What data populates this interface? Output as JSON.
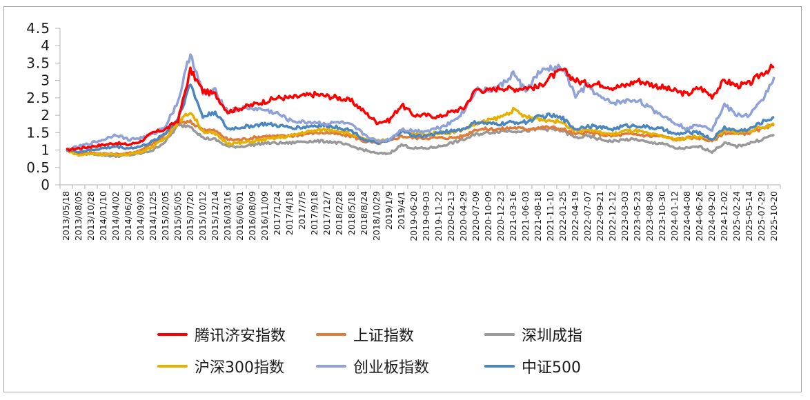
{
  "chart_data": {
    "type": "line",
    "title": "",
    "xlabel": "",
    "ylabel": "",
    "ylim": [
      0,
      4.5
    ],
    "yticks": [
      "0",
      "0.5",
      "1",
      "1.5",
      "2",
      "2.5",
      "3",
      "3.5",
      "4",
      "4.5"
    ],
    "grid": false,
    "legend_position": "bottom",
    "categories": [
      "2013/05/18",
      "2013/08/05",
      "2013/10/28",
      "2014/01/10",
      "2014/04/02",
      "2014/06/20",
      "2014/09/03",
      "2014/11/25",
      "2015/02/05",
      "2015/05/05",
      "2015/07/20",
      "2015/10/12",
      "2015/12/14",
      "2016/03/16",
      "2016/06/01",
      "2016/08/09",
      "2016/11/09",
      "2017/1/24",
      "2017/4/18",
      "2017/7/5",
      "2017/9/18",
      "2017/12/7",
      "2018/2/28",
      "2018/5/18",
      "2018/8/24",
      "2018/10/29",
      "2019/1/9",
      "2019/4/1",
      "2019-06-20",
      "2019-09-03",
      "2019-11-22",
      "2020-02-13",
      "2020-04-29",
      "2020-07-09",
      "2020-10-09",
      "2020-12-23",
      "2021-03-16",
      "2021-06-03",
      "2021-08-18",
      "2021-11-10",
      "2022-01-25",
      "2022-04-19",
      "2022-07-07",
      "2022-09-21",
      "2022-12-12",
      "2023-03-03",
      "2023-05-23",
      "2023-08-08",
      "2023-10-30",
      "2024-01-12",
      "2024-04-08",
      "2024-06-26",
      "2024-09-20",
      "2024-12-02",
      "2025-02-24",
      "2025-05-14",
      "2025-07-29",
      "2025-10-20"
    ],
    "series": [
      {
        "name": "腾讯济安指数",
        "color": "#ff0000",
        "values": [
          1.0,
          1.05,
          1.1,
          1.15,
          1.2,
          1.15,
          1.25,
          1.5,
          1.6,
          1.85,
          3.3,
          2.7,
          2.6,
          2.1,
          2.2,
          2.3,
          2.4,
          2.5,
          2.5,
          2.55,
          2.6,
          2.55,
          2.5,
          2.4,
          2.1,
          1.8,
          1.85,
          2.3,
          2.0,
          2.0,
          1.95,
          2.1,
          2.2,
          2.75,
          2.7,
          2.8,
          2.75,
          2.8,
          2.8,
          3.1,
          3.3,
          3.0,
          2.9,
          2.9,
          2.8,
          2.85,
          3.0,
          2.9,
          2.8,
          2.7,
          2.6,
          2.8,
          2.55,
          3.0,
          2.85,
          2.9,
          3.2,
          3.4
        ]
      },
      {
        "name": "上证指数",
        "color": "#e07b39",
        "values": [
          1.0,
          0.9,
          0.92,
          0.9,
          0.88,
          0.9,
          1.0,
          1.2,
          1.45,
          1.8,
          1.8,
          1.6,
          1.55,
          1.3,
          1.3,
          1.35,
          1.4,
          1.4,
          1.4,
          1.45,
          1.5,
          1.5,
          1.45,
          1.4,
          1.25,
          1.2,
          1.25,
          1.4,
          1.35,
          1.35,
          1.35,
          1.35,
          1.4,
          1.6,
          1.6,
          1.6,
          1.65,
          1.6,
          1.65,
          1.65,
          1.6,
          1.45,
          1.5,
          1.45,
          1.4,
          1.45,
          1.45,
          1.4,
          1.4,
          1.3,
          1.35,
          1.35,
          1.25,
          1.5,
          1.45,
          1.5,
          1.6,
          1.7
        ]
      },
      {
        "name": "深圳成指",
        "color": "#999999",
        "values": [
          1.0,
          0.87,
          0.9,
          0.85,
          0.82,
          0.85,
          0.9,
          1.0,
          1.25,
          1.7,
          1.7,
          1.35,
          1.3,
          1.1,
          1.1,
          1.15,
          1.2,
          1.2,
          1.2,
          1.25,
          1.25,
          1.25,
          1.2,
          1.1,
          1.0,
          0.9,
          0.9,
          1.15,
          1.05,
          1.05,
          1.1,
          1.2,
          1.3,
          1.45,
          1.5,
          1.55,
          1.55,
          1.55,
          1.6,
          1.6,
          1.55,
          1.35,
          1.4,
          1.3,
          1.25,
          1.3,
          1.3,
          1.2,
          1.2,
          1.05,
          1.05,
          1.1,
          0.95,
          1.2,
          1.1,
          1.2,
          1.3,
          1.45
        ]
      },
      {
        "name": "沪深300指数",
        "color": "#e6b000",
        "values": [
          1.0,
          0.85,
          0.9,
          0.88,
          0.86,
          0.88,
          0.95,
          1.1,
          1.35,
          1.8,
          2.1,
          1.55,
          1.45,
          1.2,
          1.2,
          1.25,
          1.3,
          1.35,
          1.4,
          1.5,
          1.55,
          1.6,
          1.55,
          1.45,
          1.3,
          1.25,
          1.3,
          1.55,
          1.45,
          1.45,
          1.5,
          1.5,
          1.6,
          1.75,
          1.85,
          1.95,
          2.15,
          1.95,
          1.9,
          1.85,
          1.8,
          1.55,
          1.6,
          1.5,
          1.45,
          1.55,
          1.55,
          1.45,
          1.4,
          1.3,
          1.35,
          1.4,
          1.3,
          1.55,
          1.5,
          1.55,
          1.65,
          1.75
        ]
      },
      {
        "name": "创业板指数",
        "color": "#8fa2d8",
        "values": [
          1.0,
          1.1,
          1.2,
          1.3,
          1.45,
          1.3,
          1.35,
          1.45,
          1.7,
          2.4,
          3.8,
          2.6,
          2.7,
          2.1,
          2.2,
          2.2,
          2.15,
          2.05,
          1.85,
          1.8,
          1.8,
          1.75,
          1.8,
          1.7,
          1.45,
          1.25,
          1.3,
          1.6,
          1.55,
          1.55,
          1.65,
          1.8,
          2.1,
          2.75,
          2.7,
          2.85,
          3.2,
          2.7,
          3.2,
          3.35,
          3.35,
          2.55,
          2.85,
          2.5,
          2.35,
          2.4,
          2.45,
          2.2,
          2.0,
          1.8,
          1.6,
          1.75,
          1.6,
          2.3,
          2.0,
          2.0,
          2.4,
          3.1
        ]
      },
      {
        "name": "中证500",
        "color": "#4a86c0",
        "values": [
          1.0,
          0.95,
          1.0,
          1.05,
          1.1,
          1.05,
          1.1,
          1.25,
          1.5,
          1.9,
          2.9,
          1.95,
          2.1,
          1.6,
          1.65,
          1.7,
          1.75,
          1.7,
          1.65,
          1.65,
          1.7,
          1.7,
          1.65,
          1.55,
          1.3,
          1.2,
          1.25,
          1.55,
          1.4,
          1.4,
          1.5,
          1.55,
          1.6,
          1.8,
          1.75,
          1.75,
          1.8,
          1.8,
          1.95,
          2.0,
          1.9,
          1.6,
          1.7,
          1.65,
          1.6,
          1.7,
          1.7,
          1.65,
          1.6,
          1.45,
          1.5,
          1.5,
          1.3,
          1.65,
          1.55,
          1.6,
          1.8,
          1.95
        ]
      }
    ]
  },
  "legend": {
    "items": [
      {
        "label": "腾讯济安指数",
        "color": "#ff0000"
      },
      {
        "label": "上证指数",
        "color": "#e07b39"
      },
      {
        "label": "深圳成指",
        "color": "#999999"
      },
      {
        "label": "沪深300指数",
        "color": "#e6b000"
      },
      {
        "label": "创业板指数",
        "color": "#8fa2d8"
      },
      {
        "label": "中证500",
        "color": "#4a86c0"
      }
    ]
  }
}
